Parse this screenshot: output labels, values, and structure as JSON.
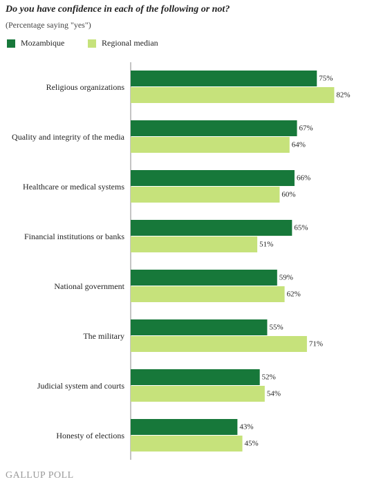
{
  "chart_data": {
    "type": "hbar",
    "title": "Do you have confidence in each of the following or not?",
    "subtitle": "(Percentage saying \"yes\")",
    "categories": [
      "Religious organizations",
      "Quality and integrity of the media",
      "Healthcare or medical systems",
      "Financial institutions or banks",
      "National government",
      "The military",
      "Judicial system and courts",
      "Honesty of elections"
    ],
    "series": [
      {
        "name": "Mozambique",
        "color": "#17783a",
        "values": [
          75,
          67,
          66,
          65,
          59,
          55,
          52,
          43
        ],
        "value_labels": [
          "75%",
          "67%",
          "66%",
          "65%",
          "59%",
          "55%",
          "52%",
          "43%"
        ]
      },
      {
        "name": "Regional median",
        "color": "#c6e27b",
        "values": [
          82,
          64,
          60,
          51,
          62,
          71,
          54,
          45
        ],
        "value_labels": [
          "82%",
          "64%",
          "60%",
          "51%",
          "62%",
          "71%",
          "54%",
          "45%"
        ]
      }
    ],
    "xlim": [
      0,
      100
    ],
    "footer": "GALLUP POLL"
  }
}
